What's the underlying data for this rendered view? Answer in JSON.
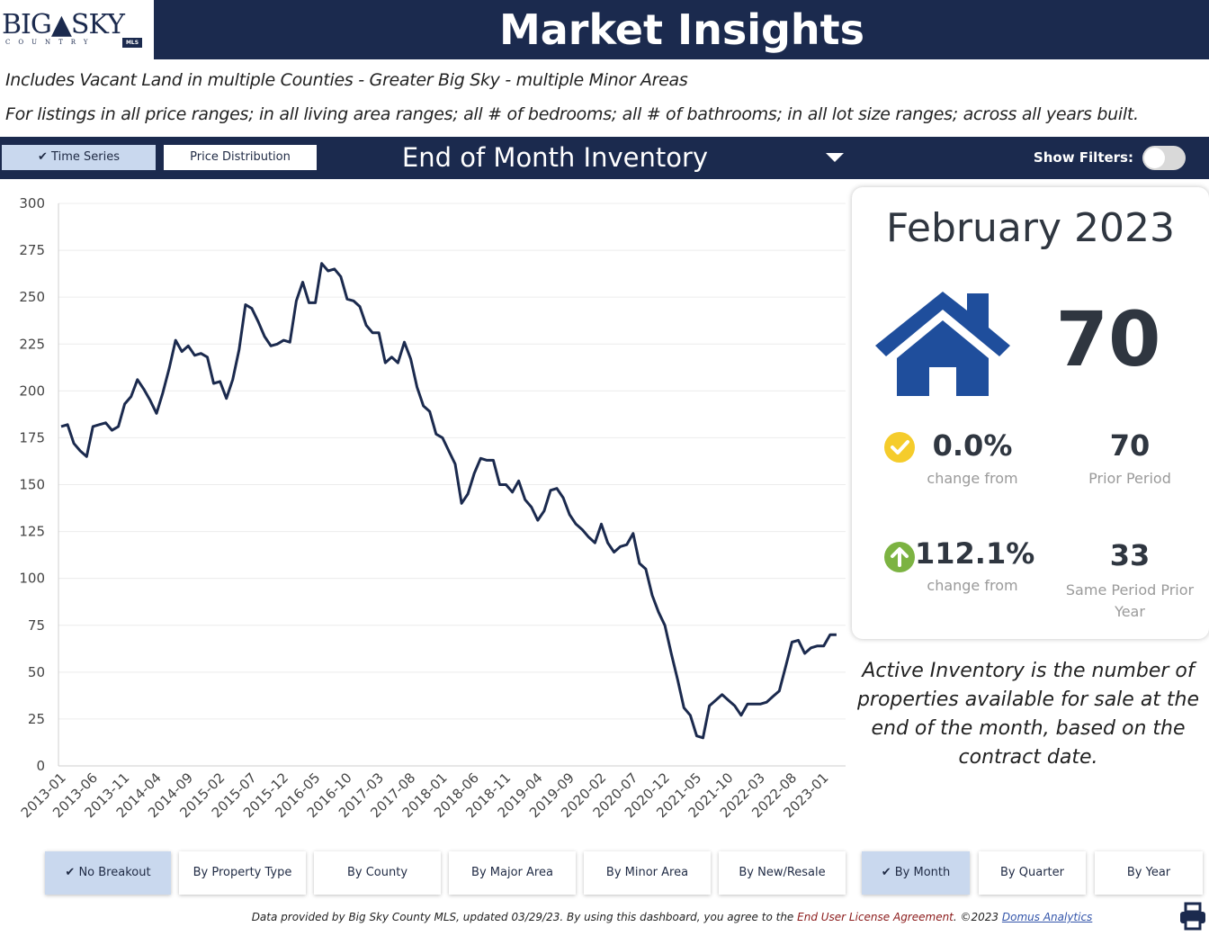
{
  "header": {
    "logo_text": "BIG▲SKY",
    "logo_sub": "COUNTRY",
    "logo_badge": "MLS",
    "title": "Market Insights"
  },
  "filters": {
    "line1": "Includes Vacant Land in multiple Counties - Greater Big Sky - multiple Minor Areas",
    "line2": "For listings in all price ranges; in all living area ranges; all # of bedrooms; all # of bathrooms; in all lot size ranges; across all years built."
  },
  "toolbar": {
    "time_series_label": "✔ Time Series",
    "price_distribution_label": "Price Distribution",
    "metric_title": "End of Month Inventory",
    "show_filters_label": "Show Filters:"
  },
  "summary": {
    "period": "February 2023",
    "value": "70",
    "change_prior_pct": "0.0%",
    "change_prior_label": "change from",
    "prior_value": "70",
    "prior_label": "Prior Period",
    "change_year_pct": "112.1%",
    "change_year_label": "change from",
    "year_value": "33",
    "year_label": "Same Period Prior Year",
    "description": "Active Inventory is the number of properties available for sale at the end of the month, based on the contract date."
  },
  "breakout_buttons": [
    {
      "label": "✔ No Breakout"
    },
    {
      "label": "By Property Type"
    },
    {
      "label": "By County"
    },
    {
      "label": "By Major Area"
    },
    {
      "label": "By Minor Area"
    },
    {
      "label": "By New/Resale"
    },
    {
      "label": "✔ By Month"
    },
    {
      "label": "By Quarter"
    },
    {
      "label": "By Year"
    }
  ],
  "footer": {
    "text1": "Data provided by Big Sky County MLS, updated 03/29/23.  By using this dashboard, you agree to the ",
    "eula": "End User License Agreement",
    "text2": ".  ©2023 ",
    "link": "Domus Analytics"
  },
  "colors": {
    "navy": "#1b2a4e",
    "line": "#1b2a4e",
    "house": "#1f4e9c",
    "check_yellow": "#f5cc2b",
    "arrow_green": "#7cb342",
    "active_button": "#c9d8ee"
  },
  "chart_data": {
    "type": "line",
    "title": "",
    "xlabel": "",
    "ylabel": "",
    "ylim": [
      0,
      300
    ],
    "yticks": [
      0,
      25,
      50,
      75,
      100,
      125,
      150,
      175,
      200,
      225,
      250,
      275,
      300
    ],
    "xtick_labels": [
      "2013-01",
      "2013-06",
      "2013-11",
      "2014-04",
      "2014-09",
      "2015-02",
      "2015-07",
      "2015-12",
      "2016-05",
      "2016-10",
      "2017-03",
      "2017-08",
      "2018-01",
      "2018-06",
      "2018-11",
      "2019-04",
      "2019-09",
      "2020-02",
      "2020-07",
      "2020-12",
      "2021-05",
      "2021-10",
      "2022-03",
      "2022-08",
      "2023-01"
    ],
    "grid": "horizontal",
    "series": [
      {
        "values": [
          181,
          182,
          172,
          168,
          165,
          181,
          182,
          183,
          179,
          181,
          193,
          197,
          206,
          201,
          195,
          188,
          199,
          212,
          227,
          221,
          224,
          219,
          220,
          218,
          204,
          205,
          196,
          206,
          222,
          246,
          244,
          237,
          229,
          224,
          225,
          227,
          226,
          248,
          258,
          247,
          247,
          268,
          264,
          265,
          261,
          249,
          248,
          245,
          235,
          231,
          231,
          215,
          218,
          215,
          226,
          217,
          202,
          192,
          189,
          177,
          175,
          168,
          161,
          140,
          145,
          156,
          164,
          163,
          163,
          150,
          150,
          146,
          152,
          142,
          138,
          131,
          136,
          147,
          148,
          143,
          134,
          129,
          126,
          122,
          119,
          129,
          119,
          114,
          117,
          118,
          124,
          108,
          105,
          91,
          82,
          75,
          60,
          46,
          31,
          27,
          16,
          15,
          32,
          35,
          38,
          35,
          32,
          27,
          33,
          33,
          33,
          34,
          37,
          40,
          53,
          66,
          67,
          60,
          63,
          64,
          64,
          70,
          70
        ]
      }
    ]
  }
}
